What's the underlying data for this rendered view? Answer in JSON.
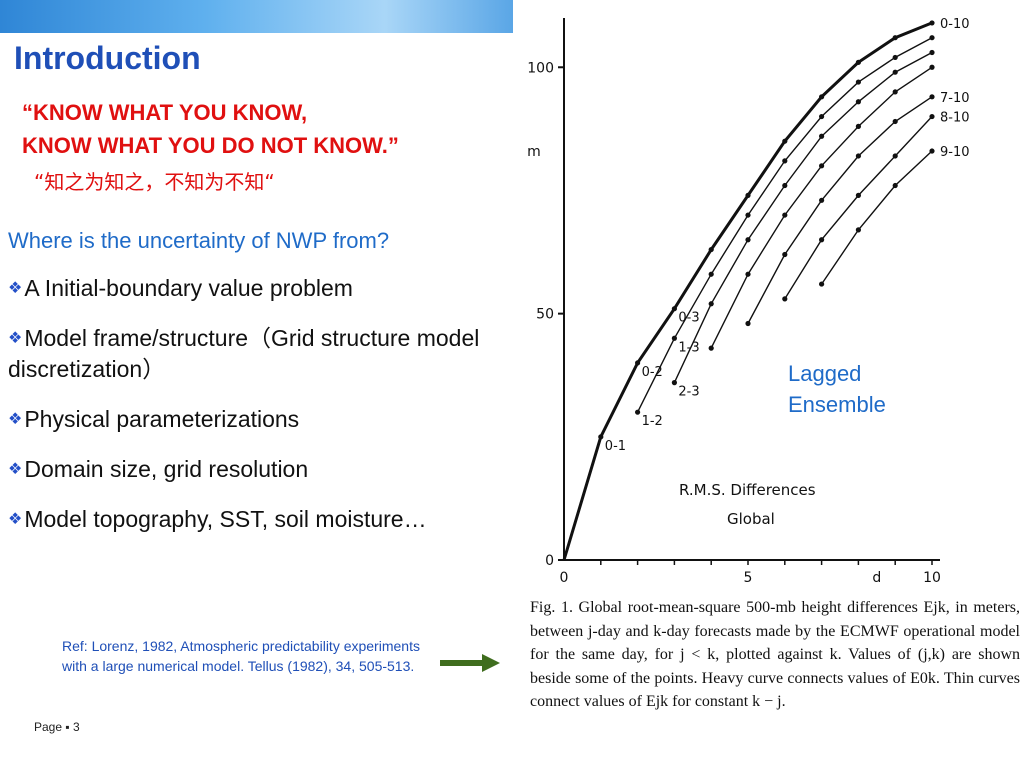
{
  "slide": {
    "title": "Introduction",
    "quote_line1": "“KNOW WHAT YOU KNOW,",
    "quote_line2": "KNOW WHAT YOU DO NOT KNOW.”",
    "quote_cn": "“知之为知之，不知为不知“",
    "question": "Where is the uncertainty of NWP from?",
    "bullets": [
      "A Initial-boundary value problem",
      "Model frame/structure（Grid structure model discretization）",
      "Physical parameterizations",
      "Domain size, grid resolution",
      "Model topography, SST, soil moisture…"
    ],
    "bullet_icon": "diamond-bullet-icon",
    "reference": "Ref: Lorenz, 1982, Atmospheric predictability experiments with a large numerical model. Tellus (1982), 34, 505-513.",
    "arrow_icon": "right-arrow-icon",
    "page_label": "Page ▪ 3",
    "annotation": [
      "Lagged",
      "Ensemble"
    ],
    "caption": "Fig. 1. Global root-mean-square 500-mb height differences Ejk, in meters, between j-day and k-day forecasts made by the ECMWF operational model for the same day, for j < k, plotted against k. Values of (j,k) are shown beside some of the points. Heavy curve connects values of E0k. Thin curves connect values of Ejk for constant k − j.",
    "colors": {
      "title": "#1f4fb7",
      "quote": "#e01010",
      "question": "#1f6bc8",
      "arrow": "#3f6d1e"
    }
  },
  "chart_data": {
    "type": "line",
    "title": "R.M.S. Differences",
    "subtitle": "Global",
    "xlabel": "d",
    "ylabel": "m",
    "xlim": [
      0,
      10
    ],
    "ylim": [
      0,
      110
    ],
    "xticks": [
      "0",
      "5",
      "10"
    ],
    "yticks": [
      "0",
      "50",
      "100"
    ],
    "point_labels": [
      {
        "text": "0-1",
        "x": 1,
        "y": 25
      },
      {
        "text": "1-2",
        "x": 2,
        "y": 30
      },
      {
        "text": "0-2",
        "x": 2,
        "y": 40
      },
      {
        "text": "2-3",
        "x": 3,
        "y": 36
      },
      {
        "text": "1-3",
        "x": 3,
        "y": 45
      },
      {
        "text": "0-3",
        "x": 3,
        "y": 51
      },
      {
        "text": "0-10",
        "x": 10,
        "y": 109
      },
      {
        "text": "7-10",
        "x": 10,
        "y": 94
      },
      {
        "text": "8-10",
        "x": 10,
        "y": 90
      },
      {
        "text": "9-10",
        "x": 10,
        "y": 83
      }
    ],
    "series": [
      {
        "values": [
          [
            0,
            0
          ],
          [
            1,
            25
          ],
          [
            2,
            40
          ],
          [
            3,
            51
          ],
          [
            4,
            63
          ],
          [
            5,
            74
          ],
          [
            6,
            85
          ],
          [
            7,
            94
          ],
          [
            8,
            101
          ],
          [
            9,
            106
          ],
          [
            10,
            109
          ]
        ]
      },
      {
        "values": [
          [
            2,
            30
          ],
          [
            3,
            45
          ],
          [
            4,
            58
          ],
          [
            5,
            70
          ],
          [
            6,
            81
          ],
          [
            7,
            90
          ],
          [
            8,
            97
          ],
          [
            9,
            102
          ],
          [
            10,
            106
          ]
        ]
      },
      {
        "values": [
          [
            3,
            36
          ],
          [
            4,
            52
          ],
          [
            5,
            65
          ],
          [
            6,
            76
          ],
          [
            7,
            86
          ],
          [
            8,
            93
          ],
          [
            9,
            99
          ],
          [
            10,
            103
          ]
        ]
      },
      {
        "values": [
          [
            4,
            43
          ],
          [
            5,
            58
          ],
          [
            6,
            70
          ],
          [
            7,
            80
          ],
          [
            8,
            88
          ],
          [
            9,
            95
          ],
          [
            10,
            100
          ]
        ]
      },
      {
        "values": [
          [
            5,
            48
          ],
          [
            6,
            62
          ],
          [
            7,
            73
          ],
          [
            8,
            82
          ],
          [
            9,
            89
          ],
          [
            10,
            94
          ]
        ]
      },
      {
        "values": [
          [
            6,
            53
          ],
          [
            7,
            65
          ],
          [
            8,
            74
          ],
          [
            9,
            82
          ],
          [
            10,
            90
          ]
        ]
      },
      {
        "values": [
          [
            7,
            56
          ],
          [
            8,
            67
          ],
          [
            9,
            76
          ],
          [
            10,
            83
          ]
        ]
      }
    ]
  }
}
